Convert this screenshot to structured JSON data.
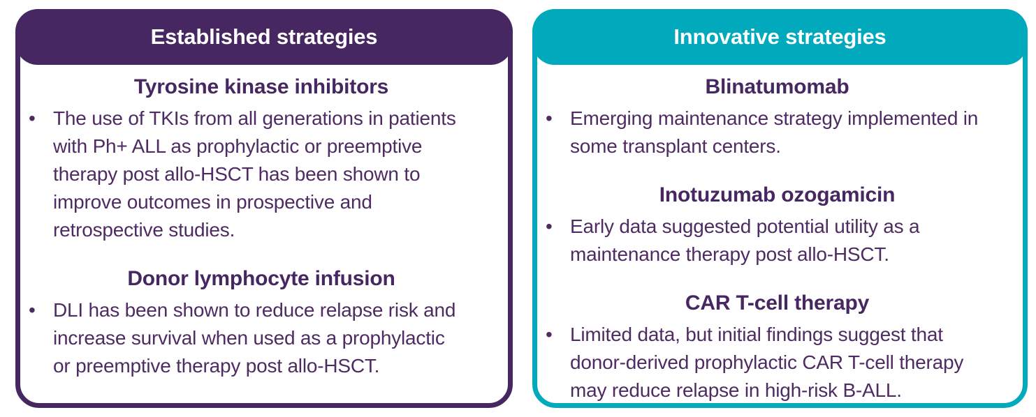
{
  "colors": {
    "purple": "#472761",
    "teal": "#00A9BC",
    "text": "#4F2B63",
    "background": "#FFFFFF"
  },
  "bullet_char": "•",
  "cards": [
    {
      "title": "Established strategies",
      "accent": "#472761",
      "sections": [
        {
          "heading": "Tyrosine kinase inhibitors",
          "bullets": [
            "The use of TKIs from all generations in patients with Ph+ ALL as prophylactic or preemptive therapy post allo-HSCT has been shown to improve outcomes in prospective and retrospective studies."
          ]
        },
        {
          "heading": "Donor lymphocyte infusion",
          "bullets": [
            "DLI has been shown to reduce relapse risk and increase survival when used as a prophylactic or preemptive therapy post allo-HSCT."
          ]
        }
      ]
    },
    {
      "title": "Innovative strategies",
      "accent": "#00A9BC",
      "sections": [
        {
          "heading": "Blinatumomab",
          "bullets": [
            "Emerging maintenance strategy implemented in some transplant centers."
          ]
        },
        {
          "heading": "Inotuzumab ozogamicin",
          "bullets": [
            "Early data suggested potential utility as a maintenance therapy post allo-HSCT."
          ]
        },
        {
          "heading": "CAR T-cell therapy",
          "bullets": [
            "Limited data, but initial findings suggest that donor-derived prophylactic CAR T-cell therapy may reduce relapse in high-risk B-ALL."
          ]
        }
      ]
    }
  ]
}
